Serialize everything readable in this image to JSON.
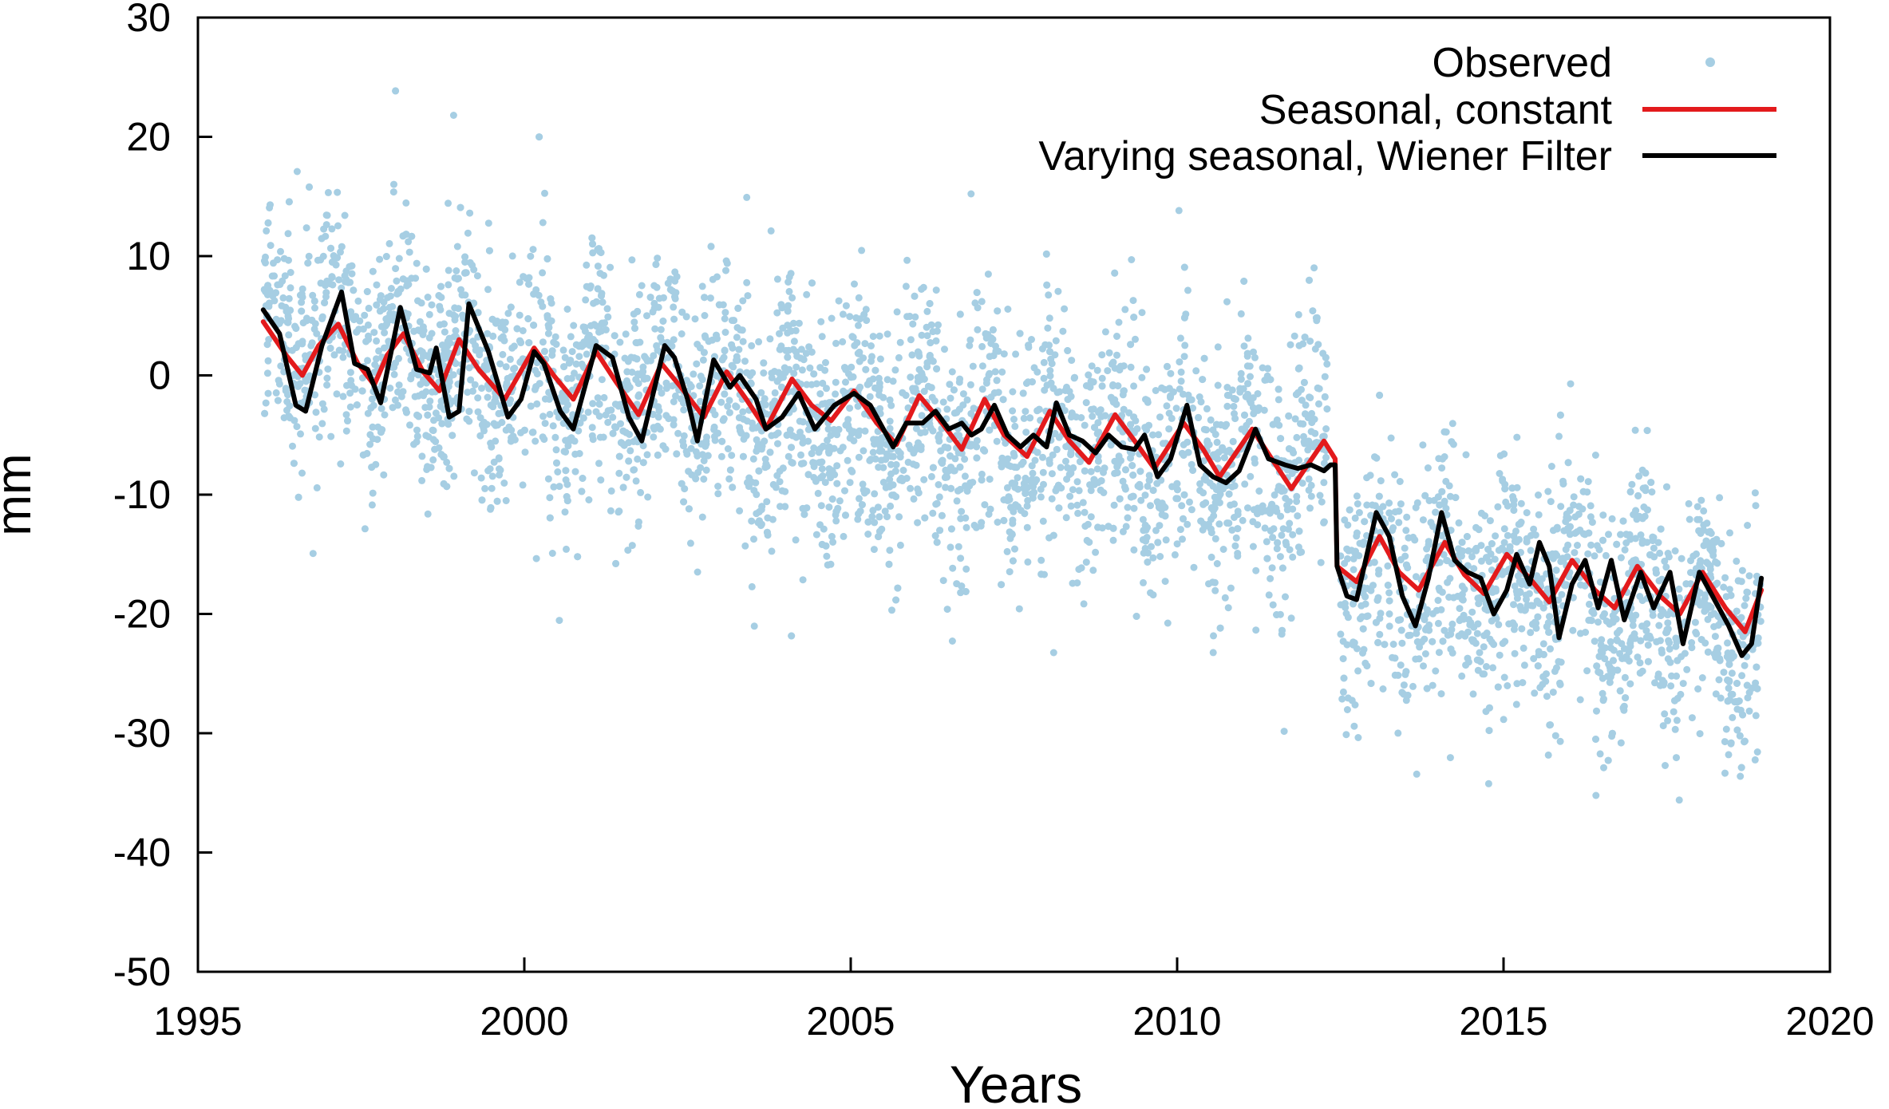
{
  "chart_data": {
    "type": "scatter",
    "title": "",
    "xlabel": "Years",
    "ylabel": "mm",
    "xlim": [
      1995,
      2020
    ],
    "ylim": [
      -50,
      30
    ],
    "xticks": [
      1995,
      2000,
      2005,
      2010,
      2015,
      2020
    ],
    "xtick_labels": [
      "1995",
      "2000",
      "2005",
      "2010",
      "2015",
      "2020"
    ],
    "yticks": [
      30,
      20,
      10,
      0,
      -10,
      -20,
      -30,
      -40,
      -50
    ],
    "ytick_labels": [
      "30",
      "20",
      "10",
      "0",
      "-10",
      "-20",
      "-30",
      "-40",
      "-50"
    ],
    "grid": false,
    "legend_position": "top-right",
    "series": [
      {
        "name": "Observed",
        "kind": "points",
        "color": "#a6cee3",
        "x_range": [
          1996.0,
          2018.95
        ],
        "trend_knots": [
          [
            1996.0,
            4.0
          ],
          [
            1999.5,
            0.5
          ],
          [
            2003.0,
            -2.0
          ],
          [
            2005.0,
            -4.5
          ],
          [
            2008.0,
            -6.0
          ],
          [
            2012.4,
            -7.0
          ],
          [
            2012.45,
            -17.0
          ],
          [
            2016.0,
            -18.0
          ],
          [
            2018.95,
            -22.0
          ]
        ],
        "seasonal_amplitude": 3,
        "scatter_sd": 5,
        "note": "daily position observations, approx. 5000 points scattered around the trend"
      },
      {
        "name": "Seasonal, constant",
        "kind": "line",
        "color": "#e31a1c",
        "points": [
          [
            1996.0,
            4.5
          ],
          [
            1996.35,
            1.7
          ],
          [
            1996.6,
            0.0
          ],
          [
            1996.85,
            2.5
          ],
          [
            1997.15,
            4.3
          ],
          [
            1997.45,
            1.0
          ],
          [
            1997.7,
            -0.8
          ],
          [
            1997.9,
            1.7
          ],
          [
            1998.15,
            3.5
          ],
          [
            1998.45,
            0.3
          ],
          [
            1998.7,
            -1.3
          ],
          [
            1999.0,
            3.0
          ],
          [
            1999.3,
            0.5
          ],
          [
            1999.7,
            -2.0
          ],
          [
            2000.15,
            2.3
          ],
          [
            2000.45,
            0.0
          ],
          [
            2000.75,
            -2.0
          ],
          [
            2001.1,
            2.0
          ],
          [
            2001.4,
            -0.5
          ],
          [
            2001.75,
            -3.3
          ],
          [
            2002.1,
            1.0
          ],
          [
            2002.4,
            -1.0
          ],
          [
            2002.75,
            -3.5
          ],
          [
            2003.1,
            0.3
          ],
          [
            2003.4,
            -2.0
          ],
          [
            2003.7,
            -4.5
          ],
          [
            2004.1,
            -0.3
          ],
          [
            2004.4,
            -2.5
          ],
          [
            2004.7,
            -3.8
          ],
          [
            2005.05,
            -1.3
          ],
          [
            2005.4,
            -4.0
          ],
          [
            2005.7,
            -5.8
          ],
          [
            2006.05,
            -1.7
          ],
          [
            2006.4,
            -4.0
          ],
          [
            2006.7,
            -6.2
          ],
          [
            2007.05,
            -2.0
          ],
          [
            2007.35,
            -5.0
          ],
          [
            2007.7,
            -6.8
          ],
          [
            2008.05,
            -3.0
          ],
          [
            2008.35,
            -5.5
          ],
          [
            2008.65,
            -7.3
          ],
          [
            2009.05,
            -3.3
          ],
          [
            2009.35,
            -5.5
          ],
          [
            2009.65,
            -7.8
          ],
          [
            2010.1,
            -4.0
          ],
          [
            2010.4,
            -6.2
          ],
          [
            2010.65,
            -8.5
          ],
          [
            2011.15,
            -4.5
          ],
          [
            2011.45,
            -7.0
          ],
          [
            2011.75,
            -9.5
          ],
          [
            2012.25,
            -5.5
          ],
          [
            2012.42,
            -7.0
          ],
          [
            2012.45,
            -16.0
          ],
          [
            2012.75,
            -17.3
          ],
          [
            2013.1,
            -13.5
          ],
          [
            2013.4,
            -16.5
          ],
          [
            2013.7,
            -18.0
          ],
          [
            2014.1,
            -14.0
          ],
          [
            2014.4,
            -16.7
          ],
          [
            2014.7,
            -18.3
          ],
          [
            2015.05,
            -15.0
          ],
          [
            2015.4,
            -17.0
          ],
          [
            2015.7,
            -19.0
          ],
          [
            2016.05,
            -15.5
          ],
          [
            2016.4,
            -18.0
          ],
          [
            2016.7,
            -19.5
          ],
          [
            2017.05,
            -16.0
          ],
          [
            2017.4,
            -18.5
          ],
          [
            2017.7,
            -20.0
          ],
          [
            2018.05,
            -16.5
          ],
          [
            2018.4,
            -19.5
          ],
          [
            2018.7,
            -21.5
          ],
          [
            2018.95,
            -18.0
          ]
        ]
      },
      {
        "name": "Varying seasonal, Wiener Filter",
        "kind": "line",
        "color": "#000000",
        "points": [
          [
            1996.0,
            5.5
          ],
          [
            1996.25,
            3.5
          ],
          [
            1996.5,
            -2.5
          ],
          [
            1996.65,
            -3.0
          ],
          [
            1996.9,
            2.5
          ],
          [
            1997.2,
            7.0
          ],
          [
            1997.4,
            1.0
          ],
          [
            1997.6,
            0.5
          ],
          [
            1997.8,
            -2.3
          ],
          [
            1998.1,
            5.7
          ],
          [
            1998.35,
            0.5
          ],
          [
            1998.55,
            0.2
          ],
          [
            1998.65,
            2.3
          ],
          [
            1998.85,
            -3.5
          ],
          [
            1999.0,
            -3.0
          ],
          [
            1999.15,
            6.0
          ],
          [
            1999.45,
            2.0
          ],
          [
            1999.75,
            -3.5
          ],
          [
            1999.95,
            -2.0
          ],
          [
            2000.15,
            2.0
          ],
          [
            2000.3,
            1.0
          ],
          [
            2000.55,
            -3.0
          ],
          [
            2000.75,
            -4.5
          ],
          [
            2001.1,
            2.5
          ],
          [
            2001.35,
            1.5
          ],
          [
            2001.6,
            -3.5
          ],
          [
            2001.8,
            -5.5
          ],
          [
            2002.15,
            2.5
          ],
          [
            2002.3,
            1.5
          ],
          [
            2002.5,
            -2.0
          ],
          [
            2002.65,
            -5.5
          ],
          [
            2002.9,
            1.3
          ],
          [
            2003.15,
            -1.0
          ],
          [
            2003.3,
            0.0
          ],
          [
            2003.55,
            -2.0
          ],
          [
            2003.7,
            -4.5
          ],
          [
            2003.95,
            -3.5
          ],
          [
            2004.2,
            -1.5
          ],
          [
            2004.45,
            -4.5
          ],
          [
            2004.75,
            -2.5
          ],
          [
            2005.05,
            -1.5
          ],
          [
            2005.3,
            -2.5
          ],
          [
            2005.5,
            -4.5
          ],
          [
            2005.65,
            -6.0
          ],
          [
            2005.85,
            -4.0
          ],
          [
            2006.1,
            -4.0
          ],
          [
            2006.3,
            -3.0
          ],
          [
            2006.5,
            -4.5
          ],
          [
            2006.7,
            -4.0
          ],
          [
            2006.85,
            -5.0
          ],
          [
            2007.0,
            -4.5
          ],
          [
            2007.2,
            -2.5
          ],
          [
            2007.4,
            -5.0
          ],
          [
            2007.6,
            -6.0
          ],
          [
            2007.8,
            -5.0
          ],
          [
            2008.0,
            -6.0
          ],
          [
            2008.15,
            -2.3
          ],
          [
            2008.35,
            -5.0
          ],
          [
            2008.55,
            -5.5
          ],
          [
            2008.75,
            -6.5
          ],
          [
            2008.95,
            -5.0
          ],
          [
            2009.15,
            -6.0
          ],
          [
            2009.35,
            -6.2
          ],
          [
            2009.5,
            -5.0
          ],
          [
            2009.7,
            -8.5
          ],
          [
            2009.9,
            -7.0
          ],
          [
            2010.15,
            -2.5
          ],
          [
            2010.35,
            -7.5
          ],
          [
            2010.55,
            -8.5
          ],
          [
            2010.75,
            -9.0
          ],
          [
            2010.95,
            -8.0
          ],
          [
            2011.2,
            -4.5
          ],
          [
            2011.4,
            -7.0
          ],
          [
            2011.65,
            -7.5
          ],
          [
            2011.85,
            -7.8
          ],
          [
            2012.05,
            -7.5
          ],
          [
            2012.25,
            -8.0
          ],
          [
            2012.35,
            -7.5
          ],
          [
            2012.42,
            -7.5
          ],
          [
            2012.45,
            -16.0
          ],
          [
            2012.6,
            -18.5
          ],
          [
            2012.75,
            -18.8
          ],
          [
            2012.95,
            -14.0
          ],
          [
            2013.05,
            -11.5
          ],
          [
            2013.25,
            -13.5
          ],
          [
            2013.45,
            -18.5
          ],
          [
            2013.65,
            -21.0
          ],
          [
            2013.85,
            -17.0
          ],
          [
            2014.05,
            -11.5
          ],
          [
            2014.25,
            -15.5
          ],
          [
            2014.45,
            -16.5
          ],
          [
            2014.65,
            -17.0
          ],
          [
            2014.85,
            -20.0
          ],
          [
            2015.05,
            -18.0
          ],
          [
            2015.2,
            -15.0
          ],
          [
            2015.4,
            -17.5
          ],
          [
            2015.55,
            -14.0
          ],
          [
            2015.7,
            -16.0
          ],
          [
            2015.85,
            -22.0
          ],
          [
            2016.05,
            -17.5
          ],
          [
            2016.25,
            -15.5
          ],
          [
            2016.45,
            -19.5
          ],
          [
            2016.65,
            -15.5
          ],
          [
            2016.85,
            -20.5
          ],
          [
            2017.1,
            -16.5
          ],
          [
            2017.3,
            -19.5
          ],
          [
            2017.55,
            -16.5
          ],
          [
            2017.75,
            -22.5
          ],
          [
            2018.0,
            -16.5
          ],
          [
            2018.2,
            -18.5
          ],
          [
            2018.45,
            -21.0
          ],
          [
            2018.65,
            -23.5
          ],
          [
            2018.8,
            -22.5
          ],
          [
            2018.95,
            -17.0
          ]
        ]
      }
    ]
  }
}
